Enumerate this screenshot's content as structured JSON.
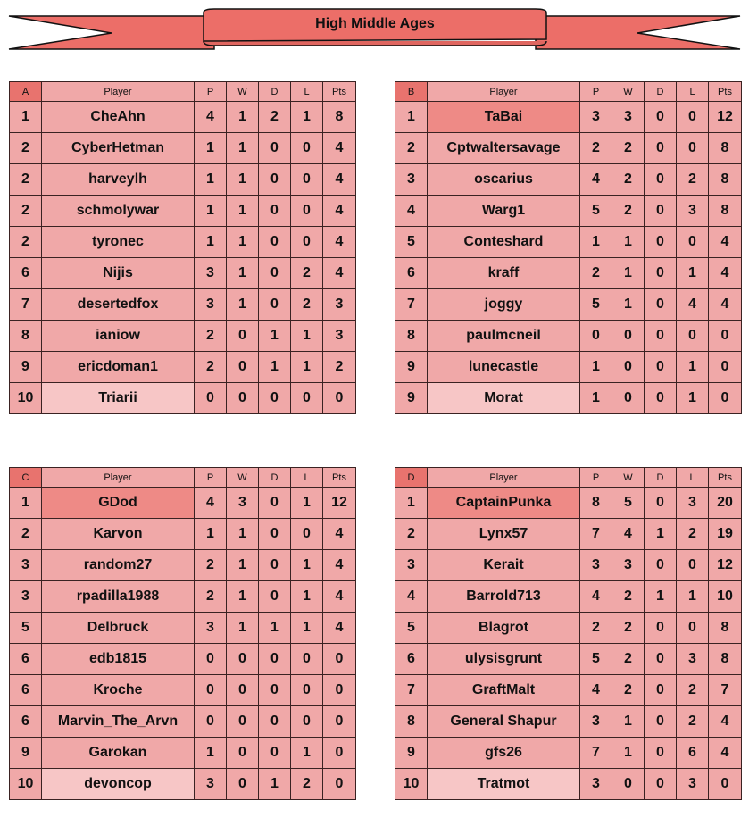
{
  "title": "High Middle Ages",
  "headers": [
    "Player",
    "P",
    "W",
    "D",
    "L",
    "Pts"
  ],
  "colors": {
    "cell": "#f0a8a8",
    "group_header": "#e8736e",
    "leader": "#ee8a86",
    "last": "#f7c6c6",
    "banner": "#ec6e68"
  },
  "groups": [
    {
      "label": "A",
      "highlight_top": false,
      "rows": [
        [
          "1",
          "CheAhn",
          "4",
          "1",
          "2",
          "1",
          "8"
        ],
        [
          "2",
          "CyberHetman",
          "1",
          "1",
          "0",
          "0",
          "4"
        ],
        [
          "2",
          "harveylh",
          "1",
          "1",
          "0",
          "0",
          "4"
        ],
        [
          "2",
          "schmolywar",
          "1",
          "1",
          "0",
          "0",
          "4"
        ],
        [
          "2",
          "tyronec",
          "1",
          "1",
          "0",
          "0",
          "4"
        ],
        [
          "6",
          "Nijis",
          "3",
          "1",
          "0",
          "2",
          "4"
        ],
        [
          "7",
          "desertedfox",
          "3",
          "1",
          "0",
          "2",
          "3"
        ],
        [
          "8",
          "ianiow",
          "2",
          "0",
          "1",
          "1",
          "3"
        ],
        [
          "9",
          "ericdoman1",
          "2",
          "0",
          "1",
          "1",
          "2"
        ],
        [
          "10",
          "Triarii",
          "0",
          "0",
          "0",
          "0",
          "0"
        ]
      ]
    },
    {
      "label": "B",
      "highlight_top": true,
      "rows": [
        [
          "1",
          "TaBai",
          "3",
          "3",
          "0",
          "0",
          "12"
        ],
        [
          "2",
          "Cptwaltersavage",
          "2",
          "2",
          "0",
          "0",
          "8"
        ],
        [
          "3",
          "oscarius",
          "4",
          "2",
          "0",
          "2",
          "8"
        ],
        [
          "4",
          "Warg1",
          "5",
          "2",
          "0",
          "3",
          "8"
        ],
        [
          "5",
          "Conteshard",
          "1",
          "1",
          "0",
          "0",
          "4"
        ],
        [
          "6",
          "kraff",
          "2",
          "1",
          "0",
          "1",
          "4"
        ],
        [
          "7",
          "joggy",
          "5",
          "1",
          "0",
          "4",
          "4"
        ],
        [
          "8",
          "paulmcneil",
          "0",
          "0",
          "0",
          "0",
          "0"
        ],
        [
          "9",
          "lunecastle",
          "1",
          "0",
          "0",
          "1",
          "0"
        ],
        [
          "9",
          "Morat",
          "1",
          "0",
          "0",
          "1",
          "0"
        ]
      ]
    },
    {
      "label": "C",
      "highlight_top": true,
      "rows": [
        [
          "1",
          "GDod",
          "4",
          "3",
          "0",
          "1",
          "12"
        ],
        [
          "2",
          "Karvon",
          "1",
          "1",
          "0",
          "0",
          "4"
        ],
        [
          "3",
          "random27",
          "2",
          "1",
          "0",
          "1",
          "4"
        ],
        [
          "3",
          "rpadilla1988",
          "2",
          "1",
          "0",
          "1",
          "4"
        ],
        [
          "5",
          "Delbruck",
          "3",
          "1",
          "1",
          "1",
          "4"
        ],
        [
          "6",
          "edb1815",
          "0",
          "0",
          "0",
          "0",
          "0"
        ],
        [
          "6",
          "Kroche",
          "0",
          "0",
          "0",
          "0",
          "0"
        ],
        [
          "6",
          "Marvin_The_Arvn",
          "0",
          "0",
          "0",
          "0",
          "0"
        ],
        [
          "9",
          "Garokan",
          "1",
          "0",
          "0",
          "1",
          "0"
        ],
        [
          "10",
          "devoncop",
          "3",
          "0",
          "1",
          "2",
          "0"
        ]
      ]
    },
    {
      "label": "D",
      "highlight_top": true,
      "rows": [
        [
          "1",
          "CaptainPunka",
          "8",
          "5",
          "0",
          "3",
          "20"
        ],
        [
          "2",
          "Lynx57",
          "7",
          "4",
          "1",
          "2",
          "19"
        ],
        [
          "3",
          "Kerait",
          "3",
          "3",
          "0",
          "0",
          "12"
        ],
        [
          "4",
          "Barrold713",
          "4",
          "2",
          "1",
          "1",
          "10"
        ],
        [
          "5",
          "Blagrot",
          "2",
          "2",
          "0",
          "0",
          "8"
        ],
        [
          "6",
          "ulysisgrunt",
          "5",
          "2",
          "0",
          "3",
          "8"
        ],
        [
          "7",
          "GraftMalt",
          "4",
          "2",
          "0",
          "2",
          "7"
        ],
        [
          "8",
          "General Shapur",
          "3",
          "1",
          "0",
          "2",
          "4"
        ],
        [
          "9",
          "gfs26",
          "7",
          "1",
          "0",
          "6",
          "4"
        ],
        [
          "10",
          "Tratmot",
          "3",
          "0",
          "0",
          "3",
          "0"
        ]
      ]
    }
  ]
}
